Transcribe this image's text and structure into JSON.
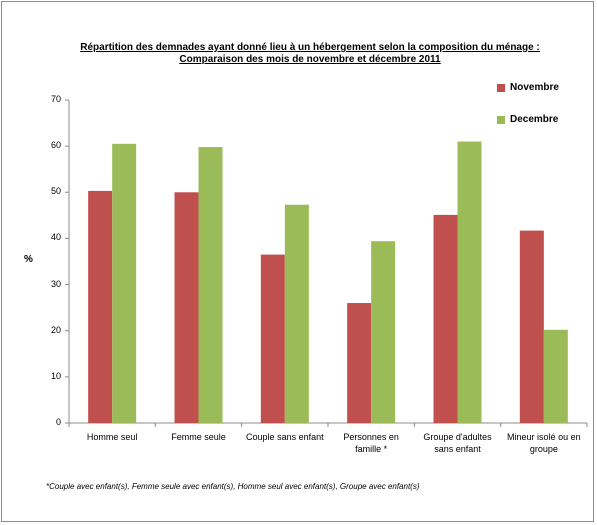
{
  "chart_data": {
    "type": "bar",
    "title": "Répartition des demnades ayant donné lieu à un hébergement selon la composition du ménage :",
    "subtitle": "Comparaison des mois de novembre et décembre 2011",
    "ylabel": "%",
    "ylim": [
      0,
      70
    ],
    "yticks": [
      0,
      10,
      20,
      30,
      40,
      50,
      60,
      70
    ],
    "grid": false,
    "legend_position": "top-right",
    "categories": [
      "Homme seul",
      "Femme seule",
      "Couple sans enfant",
      "Personnes en famille *",
      "Groupe d'adultes sans enfant",
      "Mineur isolé ou en groupe"
    ],
    "series": [
      {
        "name": "Novembre",
        "color": "#c0504d",
        "values": [
          50.3,
          50.0,
          36.5,
          26.0,
          45.1,
          41.7
        ]
      },
      {
        "name": "Decembre",
        "color": "#9bbb59",
        "values": [
          60.5,
          59.8,
          47.3,
          39.4,
          61.0,
          20.2
        ]
      }
    ],
    "footnote": "*Couple avec enfant(s), Femme seule avec enfant(s), Homme seul avec enfant(s), Groupe avec enfant(s)"
  }
}
